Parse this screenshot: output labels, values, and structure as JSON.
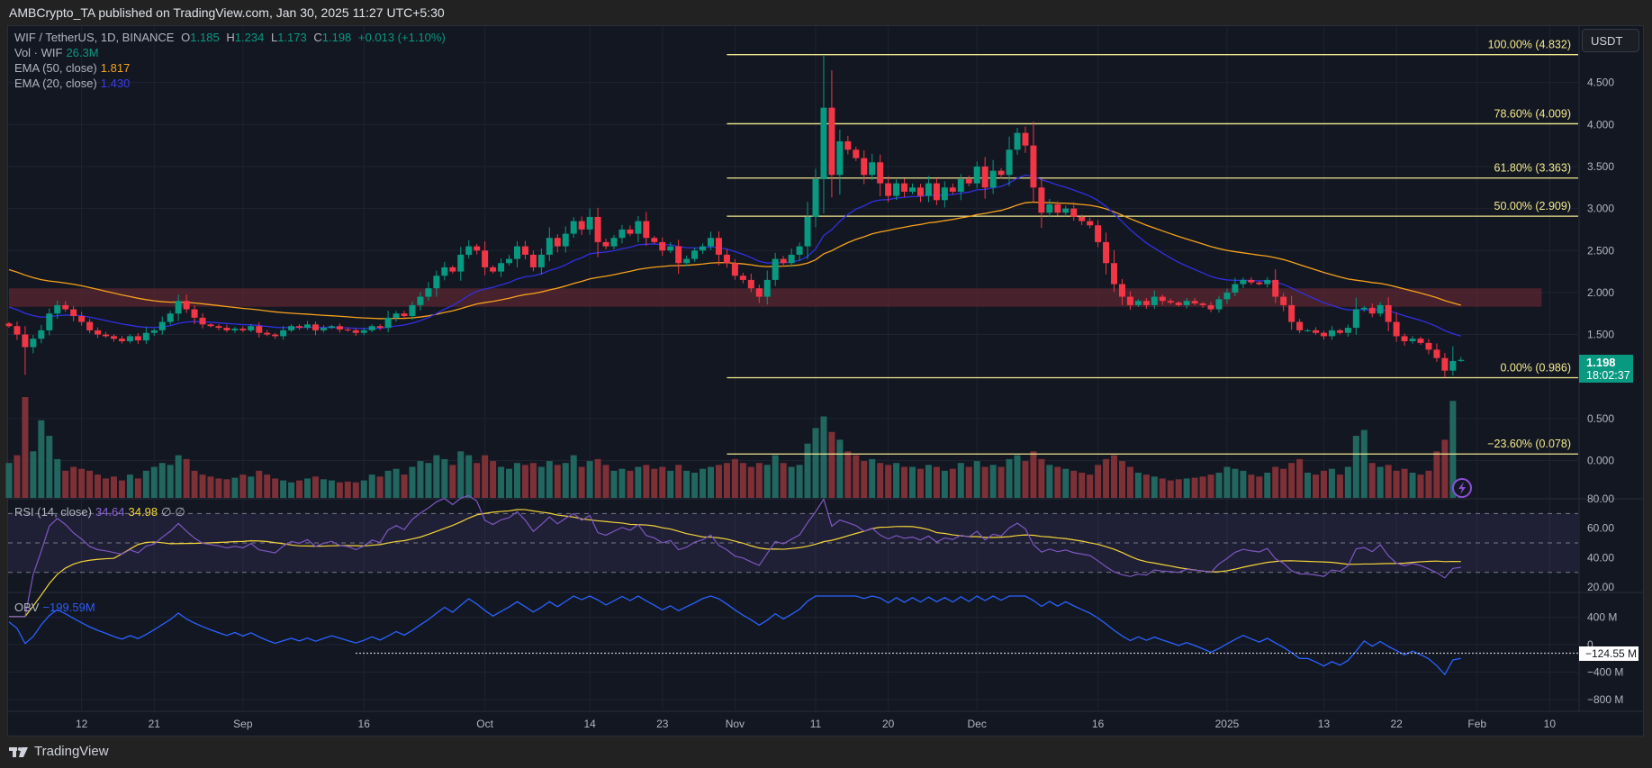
{
  "header": {
    "title": "AMBCrypto_TA published on TradingView.com, Jan 30, 2025 11:27 UTC+5:30"
  },
  "legend": {
    "symbol": "WIF / TetherUS, 1D, BINANCE",
    "o_label": "O",
    "o": "1.185",
    "h_label": "H",
    "h": "1.234",
    "l_label": "L",
    "l": "1.173",
    "c_label": "C",
    "c": "1.198",
    "change": "+0.013 (+1.10%)",
    "vol_label": "Vol · WIF",
    "vol": "26.3M",
    "ema50_label": "EMA (50, close)",
    "ema50": "1.817",
    "ema20_label": "EMA (20, close)",
    "ema20": "1.430",
    "rsi_label": "RSI (14, close)",
    "rsi": "34.64",
    "rsi_ma": "34.98",
    "rsi_na1": "∅",
    "rsi_na2": "∅",
    "obv_label": "OBV",
    "obv": "−199.59M"
  },
  "price_axis": {
    "currency": "USDT",
    "last_price": "1.198",
    "countdown": "18:02:37"
  },
  "colors": {
    "up": "#089981",
    "down": "#f23645",
    "vol_up": "#22675f",
    "vol_down": "#7e3037",
    "ema50": "#f7a21b",
    "ema20": "#3030e0",
    "rsi": "#7e57c2",
    "rsi_ma": "#f5d53a",
    "obv": "#2962ff",
    "fib": "#f3e98e",
    "zone": "#5a2530"
  },
  "footer": {
    "brand": "TradingView"
  },
  "chart_data": {
    "type": "candlestick",
    "start_date": "2024-08-03",
    "interval": "1D",
    "last_candle": {
      "open": 1.185,
      "high": 1.234,
      "low": 1.173,
      "close": 1.198
    },
    "close": [
      1.6,
      1.5,
      1.35,
      1.45,
      1.55,
      1.75,
      1.85,
      1.8,
      1.72,
      1.65,
      1.55,
      1.5,
      1.48,
      1.45,
      1.42,
      1.48,
      1.43,
      1.52,
      1.55,
      1.65,
      1.75,
      1.9,
      1.8,
      1.7,
      1.62,
      1.6,
      1.58,
      1.55,
      1.57,
      1.55,
      1.6,
      1.52,
      1.5,
      1.48,
      1.55,
      1.6,
      1.58,
      1.62,
      1.55,
      1.58,
      1.6,
      1.56,
      1.55,
      1.52,
      1.55,
      1.6,
      1.58,
      1.7,
      1.75,
      1.72,
      1.85,
      1.95,
      2.05,
      2.2,
      2.3,
      2.25,
      2.45,
      2.55,
      2.5,
      2.3,
      2.25,
      2.35,
      2.4,
      2.55,
      2.45,
      2.3,
      2.45,
      2.65,
      2.55,
      2.7,
      2.85,
      2.75,
      2.9,
      2.6,
      2.55,
      2.65,
      2.75,
      2.7,
      2.85,
      2.65,
      2.6,
      2.5,
      2.55,
      2.35,
      2.4,
      2.5,
      2.55,
      2.65,
      2.45,
      2.35,
      2.2,
      2.15,
      2.05,
      1.95,
      2.15,
      2.4,
      2.35,
      2.45,
      2.55,
      2.9,
      3.35,
      4.2,
      3.4,
      3.8,
      3.7,
      3.6,
      3.4,
      3.55,
      3.3,
      3.15,
      3.3,
      3.2,
      3.25,
      3.15,
      3.3,
      3.1,
      3.25,
      3.2,
      3.35,
      3.3,
      3.5,
      3.25,
      3.45,
      3.4,
      3.7,
      3.9,
      3.75,
      3.25,
      2.95,
      3.05,
      2.95,
      3.0,
      2.9,
      2.85,
      2.8,
      2.6,
      2.35,
      2.1,
      1.95,
      1.85,
      1.9,
      1.85,
      1.95,
      1.9,
      1.88,
      1.85,
      1.9,
      1.87,
      1.85,
      1.8,
      1.92,
      2.0,
      2.1,
      2.15,
      2.12,
      2.1,
      2.15,
      1.95,
      1.85,
      1.65,
      1.55,
      1.55,
      1.52,
      1.48,
      1.55,
      1.52,
      1.58,
      1.8,
      1.82,
      1.75,
      1.85,
      1.65,
      1.48,
      1.42,
      1.45,
      1.4,
      1.32,
      1.22,
      1.07,
      1.185,
      1.198
    ],
    "volume_millions": [
      90,
      110,
      260,
      120,
      200,
      160,
      100,
      70,
      80,
      75,
      70,
      60,
      50,
      55,
      45,
      60,
      50,
      70,
      80,
      90,
      85,
      110,
      100,
      70,
      60,
      55,
      50,
      48,
      52,
      60,
      55,
      70,
      60,
      50,
      45,
      40,
      45,
      50,
      55,
      48,
      45,
      40,
      42,
      40,
      45,
      60,
      55,
      70,
      75,
      60,
      80,
      95,
      90,
      110,
      100,
      85,
      120,
      110,
      90,
      110,
      95,
      80,
      75,
      90,
      85,
      90,
      80,
      95,
      85,
      90,
      110,
      80,
      95,
      100,
      85,
      70,
      75,
      70,
      80,
      85,
      75,
      80,
      70,
      85,
      70,
      65,
      75,
      80,
      85,
      90,
      100,
      90,
      80,
      90,
      85,
      110,
      90,
      80,
      85,
      140,
      180,
      210,
      170,
      150,
      120,
      110,
      95,
      100,
      90,
      85,
      90,
      80,
      80,
      75,
      85,
      80,
      70,
      75,
      90,
      80,
      95,
      80,
      85,
      80,
      100,
      110,
      95,
      120,
      100,
      85,
      80,
      75,
      70,
      65,
      60,
      85,
      100,
      110,
      95,
      80,
      65,
      60,
      55,
      50,
      45,
      48,
      50,
      52,
      55,
      60,
      65,
      80,
      75,
      70,
      60,
      55,
      65,
      80,
      75,
      90,
      100,
      65,
      60,
      70,
      75,
      60,
      80,
      160,
      175,
      90,
      80,
      85,
      70,
      75,
      65,
      60,
      70,
      120,
      150,
      250,
      26.3
    ],
    "price_ticks": [
      "4.500",
      "4.000",
      "3.500",
      "3.000",
      "2.500",
      "2.000",
      "1.500",
      "0.500",
      "0.000"
    ],
    "rsi_ticks": [
      "80.00",
      "60.00",
      "40.00",
      "20.00"
    ],
    "rsi_bands": [
      70,
      50,
      30
    ],
    "obv_ticks": [
      {
        "v": 400,
        "label": "400 M"
      },
      {
        "v": 0,
        "label": "0"
      },
      {
        "v": -400,
        "label": "−400 M"
      },
      {
        "v": -800,
        "label": "−800 M"
      }
    ],
    "obv_marker": {
      "value": -124.55,
      "label": "−124.55 M",
      "from_date": "2024-09-15"
    },
    "date_ticks": [
      {
        "date": "2024-08-12",
        "label": "12"
      },
      {
        "date": "2024-08-21",
        "label": "21"
      },
      {
        "date": "2024-09-01",
        "label": "Sep"
      },
      {
        "date": "2024-09-16",
        "label": "16"
      },
      {
        "date": "2024-10-01",
        "label": "Oct"
      },
      {
        "date": "2024-10-14",
        "label": "14"
      },
      {
        "date": "2024-10-23",
        "label": "23"
      },
      {
        "date": "2024-11-01",
        "label": "Nov"
      },
      {
        "date": "2024-11-11",
        "label": "11"
      },
      {
        "date": "2024-11-20",
        "label": "20"
      },
      {
        "date": "2024-12-01",
        "label": "Dec"
      },
      {
        "date": "2024-12-16",
        "label": "16"
      },
      {
        "date": "2025-01-01",
        "label": "2025"
      },
      {
        "date": "2025-01-13",
        "label": "13"
      },
      {
        "date": "2025-01-22",
        "label": "22"
      },
      {
        "date": "2025-02-01",
        "label": "Feb"
      },
      {
        "date": "2025-02-10",
        "label": "10"
      }
    ],
    "fibonacci": {
      "from_date": "2024-10-31",
      "levels": [
        {
          "label": "100.00% (4.832)",
          "price": 4.832
        },
        {
          "label": "78.60% (4.009)",
          "price": 4.009
        },
        {
          "label": "61.80% (3.363)",
          "price": 3.363
        },
        {
          "label": "50.00% (2.909)",
          "price": 2.909
        },
        {
          "label": "0.00% (0.986)",
          "price": 0.986
        },
        {
          "label": "−23.60% (0.078)",
          "price": 0.078
        }
      ]
    },
    "zone": {
      "low": 1.83,
      "high": 2.05,
      "to_date": "2025-02-09"
    }
  }
}
